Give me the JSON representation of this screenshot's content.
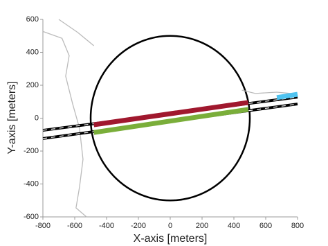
{
  "chart_data": {
    "type": "line",
    "x_label": "X-axis [meters]",
    "y_label": "Y-axis [meters]",
    "xlim": [
      -800,
      800
    ],
    "ylim": [
      -600,
      600
    ],
    "xticks": [
      -800,
      -600,
      -400,
      -200,
      0,
      200,
      400,
      600,
      800
    ],
    "yticks": [
      -600,
      -400,
      -200,
      0,
      200,
      400,
      600
    ],
    "circle": {
      "cx": 0,
      "cy": 0,
      "r": 500,
      "color": "#000000"
    },
    "series": [
      {
        "color": "#bbbbbb",
        "x": [
          -800,
          -680,
          -635,
          -657,
          -613,
          -570,
          -548,
          -570,
          -592,
          -526
        ],
        "y": [
          527,
          485,
          380,
          255,
          86,
          -61,
          -250,
          -419,
          -545,
          -600
        ]
      },
      {
        "color": "#bbbbbb",
        "x": [
          -700,
          -580,
          -480
        ],
        "y": [
          600,
          520,
          440
        ]
      },
      {
        "color": "#bbbbbb",
        "x": [
          450,
          535,
          670,
          760
        ],
        "y": [
          170,
          150,
          158,
          150
        ]
      },
      {
        "color": "#000000",
        "dashed": true,
        "x": [
          -800,
          800
        ],
        "y": [
          -74,
          128
        ]
      },
      {
        "color": "#000000",
        "dashed": true,
        "x": [
          -800,
          800
        ],
        "y": [
          -124,
          86
        ]
      },
      {
        "color": "#a0182e",
        "thick": true,
        "x": [
          -480,
          490
        ],
        "y": [
          -40,
          95
        ]
      },
      {
        "color": "#7aae3a",
        "thick": true,
        "x": [
          -480,
          490
        ],
        "y": [
          -87,
          53
        ]
      },
      {
        "color": "#4fc3f0",
        "thick": true,
        "x": [
          670,
          800
        ],
        "y": [
          125,
          145
        ]
      }
    ]
  }
}
